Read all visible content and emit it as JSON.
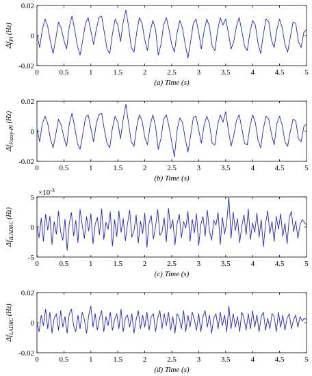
{
  "colors": {
    "line": "#1f1fe6",
    "axis": "#000000",
    "background": "#ffffff"
  },
  "chart_data": [
    {
      "type": "line",
      "id": "a",
      "ylabel_main": "Δf",
      "ylabel_sub": "PI",
      "ylabel_unit": " (Hz)",
      "caption": "(a)  Time (s)",
      "xlim": [
        0,
        5
      ],
      "ylim": [
        -0.02,
        0.02
      ],
      "x_ticks": [
        "0",
        "0.5",
        "1",
        "1.5",
        "2",
        "2.5",
        "3",
        "3.5",
        "4",
        "4.5",
        "5"
      ],
      "y_ticks": [
        "-0.02",
        "0",
        "0.02"
      ],
      "y_tick_values": [
        -0.02,
        0,
        0.02
      ],
      "exponent_label": "",
      "series": [
        {
          "x": [
            0,
            0.05,
            0.1,
            0.15,
            0.2,
            0.25,
            0.3,
            0.35,
            0.4,
            0.45,
            0.5,
            0.55,
            0.6,
            0.65,
            0.7,
            0.75,
            0.8,
            0.85,
            0.9,
            0.95,
            1.0,
            1.05,
            1.1,
            1.15,
            1.2,
            1.25,
            1.3,
            1.35,
            1.4,
            1.45,
            1.5,
            1.55,
            1.6,
            1.65,
            1.7,
            1.75,
            1.8,
            1.85,
            1.9,
            1.95,
            2.0,
            2.05,
            2.1,
            2.15,
            2.2,
            2.25,
            2.3,
            2.35,
            2.4,
            2.45,
            2.5,
            2.55,
            2.6,
            2.65,
            2.7,
            2.75,
            2.8,
            2.85,
            2.9,
            2.95,
            3.0,
            3.05,
            3.1,
            3.15,
            3.2,
            3.25,
            3.3,
            3.35,
            3.4,
            3.45,
            3.5,
            3.55,
            3.6,
            3.65,
            3.7,
            3.75,
            3.8,
            3.85,
            3.9,
            3.95,
            4.0,
            4.05,
            4.1,
            4.15,
            4.2,
            4.25,
            4.3,
            4.35,
            4.4,
            4.45,
            4.5,
            4.55,
            4.6,
            4.65,
            4.7,
            4.75,
            4.8,
            4.85,
            4.9,
            4.95,
            5.0
          ],
          "y": [
            0.001,
            -0.008,
            0.004,
            0.011,
            0.006,
            -0.004,
            -0.012,
            -0.002,
            0.009,
            0.005,
            -0.003,
            -0.009,
            0.006,
            0.013,
            0.004,
            -0.007,
            -0.013,
            -0.003,
            0.008,
            0.012,
            0.003,
            -0.006,
            0.004,
            0.012,
            0.013,
            0.002,
            -0.009,
            -0.012,
            0.001,
            0.011,
            0.007,
            -0.004,
            0.009,
            0.017,
            0.006,
            -0.008,
            -0.011,
            0.002,
            0.012,
            0.008,
            -0.003,
            -0.01,
            0.003,
            0.01,
            0.004,
            -0.013,
            -0.006,
            0.007,
            0.012,
            0.004,
            -0.006,
            -0.011,
            0.002,
            0.01,
            0.005,
            -0.006,
            -0.015,
            -0.004,
            0.008,
            0.011,
            0.002,
            -0.009,
            0.003,
            0.011,
            0.006,
            -0.007,
            -0.01,
            0.003,
            0.012,
            0.007,
            0.011,
            0.002,
            -0.009,
            -0.004,
            0.006,
            0.012,
            0.003,
            -0.007,
            -0.01,
            0.002,
            0.01,
            0.007,
            -0.005,
            -0.012,
            0.001,
            0.011,
            0.009,
            -0.003,
            -0.008,
            0.004,
            0.011,
            0.005,
            -0.006,
            -0.011,
            -0.001,
            0.009,
            0.008,
            -0.004,
            -0.008,
            0.002,
            0.004
          ]
        }
      ]
    },
    {
      "type": "line",
      "id": "b",
      "ylabel_main": "Δf",
      "ylabel_sub": "Fuzzy-PI",
      "ylabel_unit": " (Hz)",
      "caption": "(b)  Time (s)",
      "xlim": [
        0,
        5
      ],
      "ylim": [
        -0.02,
        0.02
      ],
      "x_ticks": [
        "0",
        "0.5",
        "1",
        "1.5",
        "2",
        "2.5",
        "3",
        "3.5",
        "4",
        "4.5",
        "5"
      ],
      "y_ticks": [
        "-0.02",
        "0",
        "0.02"
      ],
      "y_tick_values": [
        -0.02,
        0,
        0.02
      ],
      "exponent_label": "",
      "series": [
        {
          "x": [
            0,
            0.05,
            0.1,
            0.15,
            0.2,
            0.25,
            0.3,
            0.35,
            0.4,
            0.45,
            0.5,
            0.55,
            0.6,
            0.65,
            0.7,
            0.75,
            0.8,
            0.85,
            0.9,
            0.95,
            1.0,
            1.05,
            1.1,
            1.15,
            1.2,
            1.25,
            1.3,
            1.35,
            1.4,
            1.45,
            1.5,
            1.55,
            1.6,
            1.65,
            1.7,
            1.75,
            1.8,
            1.85,
            1.9,
            1.95,
            2.0,
            2.05,
            2.1,
            2.15,
            2.2,
            2.25,
            2.3,
            2.35,
            2.4,
            2.45,
            2.5,
            2.55,
            2.6,
            2.65,
            2.7,
            2.75,
            2.8,
            2.85,
            2.9,
            2.95,
            3.0,
            3.05,
            3.1,
            3.15,
            3.2,
            3.25,
            3.3,
            3.35,
            3.4,
            3.45,
            3.5,
            3.55,
            3.6,
            3.65,
            3.7,
            3.75,
            3.8,
            3.85,
            3.9,
            3.95,
            4.0,
            4.05,
            4.1,
            4.15,
            4.2,
            4.25,
            4.3,
            4.35,
            4.4,
            4.45,
            4.5,
            4.55,
            4.6,
            4.65,
            4.7,
            4.75,
            4.8,
            4.85,
            4.9,
            4.95,
            5.0
          ],
          "y": [
            0.002,
            -0.007,
            0.005,
            0.01,
            0.005,
            -0.005,
            -0.011,
            -0.002,
            0.008,
            0.004,
            -0.004,
            -0.01,
            0.005,
            0.012,
            0.003,
            -0.008,
            -0.012,
            -0.002,
            0.009,
            0.011,
            0.002,
            -0.007,
            0.005,
            0.011,
            0.012,
            0.001,
            -0.008,
            -0.011,
            0.002,
            0.01,
            0.006,
            -0.005,
            0.008,
            0.018,
            0.005,
            -0.007,
            -0.01,
            0.003,
            0.011,
            0.007,
            -0.004,
            -0.009,
            0.004,
            0.011,
            0.003,
            -0.012,
            -0.005,
            0.008,
            0.011,
            0.003,
            -0.007,
            -0.017,
            0.001,
            0.009,
            0.006,
            -0.005,
            -0.014,
            -0.003,
            0.009,
            0.01,
            0.001,
            -0.008,
            0.004,
            0.01,
            0.005,
            -0.008,
            -0.009,
            0.004,
            0.011,
            0.006,
            0.013,
            0.001,
            -0.01,
            -0.003,
            0.007,
            0.011,
            0.002,
            -0.008,
            -0.009,
            0.003,
            0.011,
            0.006,
            -0.006,
            -0.011,
            0.002,
            0.01,
            0.008,
            -0.002,
            -0.009,
            0.005,
            0.01,
            0.004,
            -0.007,
            -0.01,
            0.0,
            0.008,
            0.007,
            -0.005,
            -0.007,
            0.003,
            0.005
          ]
        }
      ]
    },
    {
      "type": "line",
      "id": "c",
      "ylabel_main": "Δf",
      "ylabel_sub": "ILADRC",
      "ylabel_unit": " (Hz)",
      "caption": "(c)  Time (s)",
      "xlim": [
        0,
        5
      ],
      "ylim": [
        -5,
        5
      ],
      "x_ticks": [
        "0",
        "0.5",
        "1",
        "1.5",
        "2",
        "2.5",
        "3",
        "3.5",
        "4",
        "4.5",
        "5"
      ],
      "y_ticks": [
        "-5",
        "0",
        "5"
      ],
      "y_tick_values": [
        -5,
        0,
        5
      ],
      "exponent_label": "×10",
      "exponent_power": "-3",
      "series": [
        {
          "x": [
            0,
            0.04,
            0.08,
            0.12,
            0.16,
            0.2,
            0.24,
            0.28,
            0.32,
            0.36,
            0.4,
            0.44,
            0.48,
            0.52,
            0.56,
            0.6,
            0.64,
            0.68,
            0.72,
            0.76,
            0.8,
            0.84,
            0.88,
            0.92,
            0.96,
            1.0,
            1.04,
            1.08,
            1.12,
            1.16,
            1.2,
            1.24,
            1.28,
            1.32,
            1.36,
            1.4,
            1.44,
            1.48,
            1.52,
            1.56,
            1.6,
            1.64,
            1.68,
            1.72,
            1.76,
            1.8,
            1.84,
            1.88,
            1.92,
            1.96,
            2.0,
            2.04,
            2.08,
            2.12,
            2.16,
            2.2,
            2.24,
            2.28,
            2.32,
            2.36,
            2.4,
            2.44,
            2.48,
            2.52,
            2.56,
            2.6,
            2.64,
            2.68,
            2.72,
            2.76,
            2.8,
            2.84,
            2.88,
            2.92,
            2.96,
            3.0,
            3.04,
            3.08,
            3.12,
            3.16,
            3.2,
            3.24,
            3.28,
            3.32,
            3.36,
            3.4,
            3.44,
            3.48,
            3.52,
            3.56,
            3.6,
            3.64,
            3.68,
            3.72,
            3.76,
            3.8,
            3.84,
            3.88,
            3.92,
            3.96,
            4.0,
            4.04,
            4.08,
            4.12,
            4.16,
            4.2,
            4.24,
            4.28,
            4.32,
            4.36,
            4.4,
            4.44,
            4.48,
            4.52,
            4.56,
            4.6,
            4.64,
            4.68,
            4.72,
            4.76,
            4.8,
            4.84,
            4.88,
            4.92,
            4.96,
            5.0
          ],
          "y": [
            0.2,
            -1.8,
            1.5,
            -2.4,
            2.1,
            -0.5,
            1.8,
            -2.9,
            0.9,
            -1.2,
            2.6,
            -0.8,
            -2.2,
            1.3,
            -3.9,
            0.6,
            2.4,
            -1.5,
            1.1,
            -2.6,
            2.9,
            0.3,
            -1.9,
            1.7,
            -0.7,
            2.2,
            -2.8,
            0.4,
            1.6,
            -1.3,
            3.0,
            -2.1,
            0.8,
            -0.4,
            2.5,
            -3.2,
            1.2,
            -1.6,
            2.7,
            -0.9,
            1.4,
            -2.3,
            0.5,
            2.8,
            -1.7,
            -0.6,
            2.0,
            -2.7,
            1.0,
            -1.1,
            2.3,
            -3.4,
            0.7,
            1.9,
            -2.0,
            0.1,
            2.9,
            -1.4,
            -0.8,
            1.5,
            -2.5,
            3.1,
            -0.3,
            1.2,
            -3.0,
            0.6,
            2.1,
            -1.8,
            0.9,
            -0.2,
            2.6,
            -2.4,
            1.3,
            -1.0,
            2.2,
            -3.1,
            0.4,
            1.7,
            -1.5,
            2.8,
            -0.7,
            -2.2,
            1.1,
            0.3,
            2.4,
            -2.9,
            1.6,
            -1.2,
            0.8,
            5.0,
            -1.9,
            2.5,
            -0.6,
            1.4,
            -2.6,
            0.2,
            2.0,
            -1.3,
            3.0,
            -2.1,
            0.7,
            -0.9,
            2.3,
            -1.7,
            1.2,
            -3.3,
            0.5,
            2.7,
            -1.1,
            0.9,
            -2.4,
            1.8,
            -0.4,
            2.2,
            -1.6,
            0.6,
            -2.8,
            1.5,
            2.6,
            -0.8,
            1.0,
            -1.9,
            0.4,
            1.2,
            0.8,
            0.3
          ]
        }
      ]
    },
    {
      "type": "line",
      "id": "d",
      "ylabel_main": "Δf",
      "ylabel_sub": "LADRC",
      "ylabel_unit": " (Hz)",
      "caption": "(d)  Time (s)",
      "xlim": [
        0,
        5
      ],
      "ylim": [
        -0.02,
        0.02
      ],
      "x_ticks": [
        "0",
        "0.5",
        "1",
        "1.5",
        "2",
        "2.5",
        "3",
        "3.5",
        "4",
        "4.5",
        "5"
      ],
      "y_ticks": [
        "-0.02",
        "0",
        "0.02"
      ],
      "y_tick_values": [
        -0.02,
        0,
        0.02
      ],
      "exponent_label": "",
      "series": [
        {
          "x": [
            0,
            0.04,
            0.08,
            0.12,
            0.16,
            0.2,
            0.24,
            0.28,
            0.32,
            0.36,
            0.4,
            0.44,
            0.48,
            0.52,
            0.56,
            0.6,
            0.64,
            0.68,
            0.72,
            0.76,
            0.8,
            0.84,
            0.88,
            0.92,
            0.96,
            1.0,
            1.04,
            1.08,
            1.12,
            1.16,
            1.2,
            1.24,
            1.28,
            1.32,
            1.36,
            1.4,
            1.44,
            1.48,
            1.52,
            1.56,
            1.6,
            1.64,
            1.68,
            1.72,
            1.76,
            1.8,
            1.84,
            1.88,
            1.92,
            1.96,
            2.0,
            2.04,
            2.08,
            2.12,
            2.16,
            2.2,
            2.24,
            2.28,
            2.32,
            2.36,
            2.4,
            2.44,
            2.48,
            2.52,
            2.56,
            2.6,
            2.64,
            2.68,
            2.72,
            2.76,
            2.8,
            2.84,
            2.88,
            2.92,
            2.96,
            3.0,
            3.04,
            3.08,
            3.12,
            3.16,
            3.2,
            3.24,
            3.28,
            3.32,
            3.36,
            3.4,
            3.44,
            3.48,
            3.52,
            3.56,
            3.6,
            3.64,
            3.68,
            3.72,
            3.76,
            3.8,
            3.84,
            3.88,
            3.92,
            3.96,
            4.0,
            4.04,
            4.08,
            4.12,
            4.16,
            4.2,
            4.24,
            4.28,
            4.32,
            4.36,
            4.4,
            4.44,
            4.48,
            4.52,
            4.56,
            4.6,
            4.64,
            4.68,
            4.72,
            4.76,
            4.8,
            4.84,
            4.88,
            4.92,
            4.96,
            5.0
          ],
          "y": [
            0.0,
            -0.006,
            0.005,
            -0.002,
            0.009,
            -0.004,
            0.007,
            -0.007,
            0.003,
            0.006,
            -0.005,
            0.008,
            -0.003,
            0.004,
            -0.007,
            0.006,
            0.009,
            -0.002,
            -0.006,
            0.005,
            -0.004,
            0.007,
            0.002,
            -0.007,
            0.005,
            0.011,
            -0.003,
            0.006,
            -0.005,
            0.003,
            0.008,
            -0.006,
            0.004,
            -0.002,
            0.007,
            -0.005,
            0.002,
            0.006,
            -0.004,
            0.009,
            -0.006,
            0.003,
            0.005,
            -0.003,
            0.006,
            -0.007,
            0.002,
            0.008,
            -0.004,
            0.005,
            -0.003,
            0.007,
            -0.005,
            0.004,
            0.006,
            -0.006,
            0.003,
            0.008,
            -0.004,
            0.006,
            -0.002,
            0.007,
            -0.005,
            0.004,
            -0.007,
            0.006,
            0.003,
            -0.004,
            0.008,
            -0.006,
            0.005,
            -0.003,
            0.007,
            0.002,
            -0.005,
            0.006,
            -0.006,
            0.004,
            0.008,
            -0.003,
            0.005,
            -0.007,
            0.003,
            0.006,
            -0.004,
            0.007,
            -0.002,
            0.005,
            -0.006,
            0.011,
            -0.004,
            0.006,
            -0.003,
            0.004,
            -0.006,
            0.007,
            0.003,
            -0.005,
            0.006,
            -0.004,
            0.008,
            -0.003,
            0.005,
            -0.006,
            0.004,
            0.007,
            -0.005,
            0.003,
            -0.004,
            0.006,
            0.004,
            -0.006,
            0.007,
            -0.003,
            0.005,
            -0.005,
            0.003,
            0.006,
            -0.004,
            0.002,
            0.005,
            -0.003,
            0.004,
            0.001,
            0.003,
            0.002
          ]
        }
      ]
    }
  ]
}
